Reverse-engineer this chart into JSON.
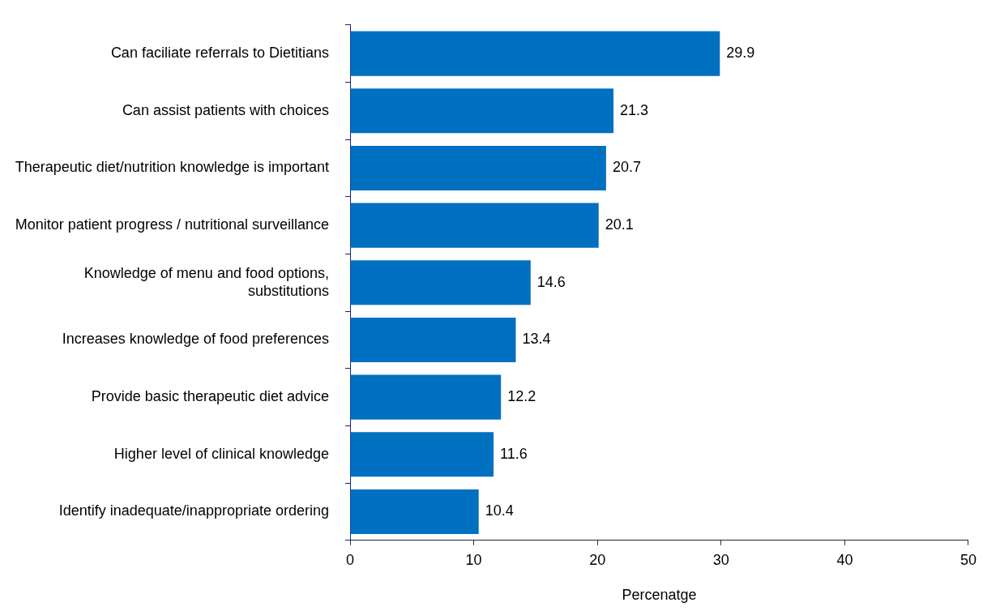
{
  "chart_data": {
    "type": "bar",
    "orientation": "horizontal",
    "xlabel": "Percenatge",
    "categories": [
      "Can faciliate referrals to Dietitians",
      "Can assist patients with choices",
      "Therapeutic diet/nutrition knowledge is important",
      "Monitor patient progress / nutritional surveillance",
      "Knowledge of menu and food options, substitutions",
      "Increases knowledge of food preferences",
      "Provide basic therapeutic diet advice",
      "Higher level of clinical knowledge",
      "Identify inadequate/inappropriate ordering"
    ],
    "values": [
      29.9,
      21.3,
      20.7,
      20.1,
      14.6,
      13.4,
      12.2,
      11.6,
      10.4
    ],
    "color": "#0070c0",
    "xlim": [
      0,
      50
    ],
    "xticks": [
      0,
      10,
      20,
      30,
      40,
      50
    ],
    "grid": false,
    "legend": false,
    "data_labels": true
  }
}
